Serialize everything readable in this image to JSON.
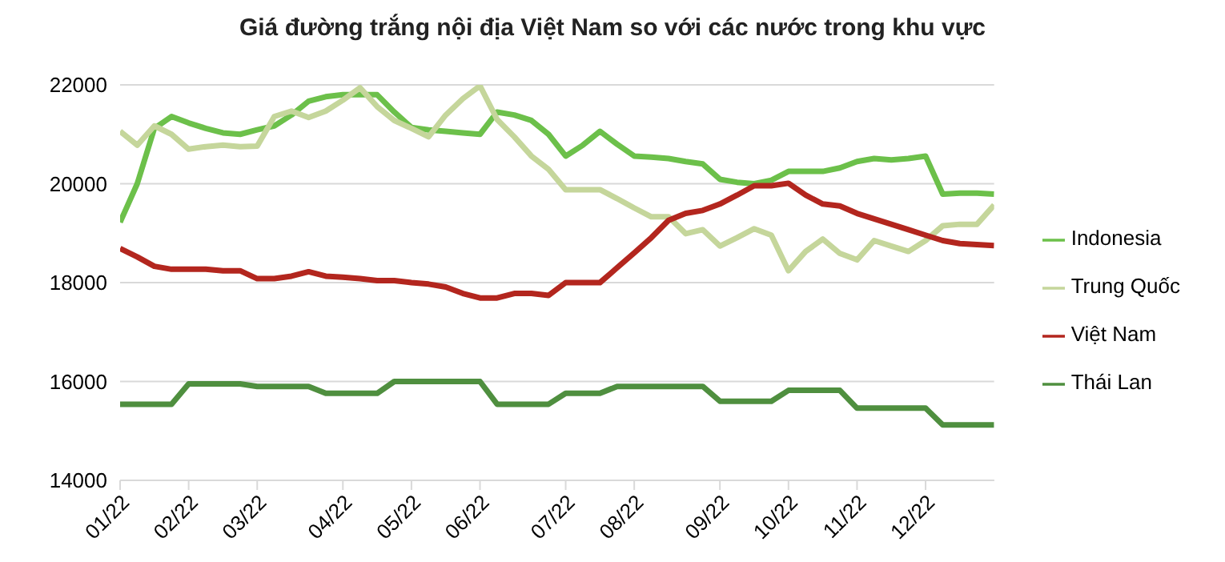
{
  "chart_data": {
    "type": "line",
    "title": "Giá đường trắng nội địa Việt Nam so với các nước trong khu vực",
    "categories": [
      "01/22",
      null,
      null,
      null,
      "02/22",
      null,
      null,
      null,
      "03/22",
      null,
      null,
      null,
      null,
      "04/22",
      null,
      null,
      null,
      "05/22",
      null,
      null,
      null,
      "06/22",
      null,
      null,
      null,
      null,
      "07/22",
      null,
      null,
      null,
      "08/22",
      null,
      null,
      null,
      null,
      "09/22",
      null,
      null,
      null,
      "10/22",
      null,
      null,
      null,
      "11/22",
      null,
      null,
      null,
      "12/22",
      null,
      null,
      null,
      null
    ],
    "series": [
      {
        "name": "Indonesia",
        "color": "#6cc04a",
        "values": [
          19220,
          20000,
          21120,
          21360,
          21230,
          21120,
          21030,
          21000,
          21090,
          21170,
          21390,
          21670,
          21760,
          21800,
          21800,
          21800,
          21450,
          21140,
          21090,
          21060,
          21030,
          21000,
          21450,
          21390,
          21280,
          21000,
          20560,
          20780,
          21060,
          20800,
          20560,
          20540,
          20510,
          20450,
          20400,
          20090,
          20030,
          20000,
          20070,
          20250,
          20250,
          20250,
          20320,
          20450,
          20510,
          20480,
          20510,
          20560,
          19790,
          19810,
          19810,
          19790
        ]
      },
      {
        "name": "Trung Quốc",
        "color": "#c5d69b",
        "values": [
          21060,
          20780,
          21170,
          21000,
          20700,
          20750,
          20780,
          20750,
          20760,
          21360,
          21470,
          21340,
          21470,
          21690,
          21940,
          21560,
          21280,
          21120,
          20950,
          21390,
          21720,
          21980,
          21300,
          20950,
          20560,
          20290,
          19880,
          19880,
          19880,
          19700,
          19510,
          19330,
          19330,
          18990,
          19070,
          18740,
          18910,
          19090,
          18960,
          18240,
          18630,
          18880,
          18590,
          18460,
          18850,
          18740,
          18630,
          18850,
          19150,
          19180,
          19180,
          19570
        ]
      },
      {
        "name": "Việt Nam",
        "color": "#b3261e",
        "values": [
          18690,
          18520,
          18330,
          18270,
          18270,
          18270,
          18240,
          18240,
          18080,
          18080,
          18130,
          18220,
          18130,
          18110,
          18080,
          18040,
          18040,
          18000,
          17970,
          17910,
          17780,
          17690,
          17690,
          17780,
          17780,
          17740,
          18000,
          18000,
          18000,
          18300,
          18600,
          18910,
          19260,
          19400,
          19460,
          19590,
          19770,
          19960,
          19960,
          20010,
          19770,
          19590,
          19550,
          19400,
          19290,
          19180,
          19070,
          18960,
          18850,
          18790,
          18770,
          18750
        ]
      },
      {
        "name": "Thái Lan",
        "color": "#4f8f3f",
        "values": [
          15540,
          15540,
          15540,
          15540,
          15950,
          15950,
          15950,
          15950,
          15900,
          15900,
          15900,
          15900,
          15760,
          15760,
          15760,
          15760,
          16000,
          16000,
          16000,
          16000,
          16000,
          16000,
          15540,
          15540,
          15540,
          15540,
          15760,
          15760,
          15760,
          15900,
          15900,
          15900,
          15900,
          15900,
          15900,
          15600,
          15600,
          15600,
          15600,
          15820,
          15820,
          15820,
          15820,
          15460,
          15460,
          15460,
          15460,
          15460,
          15120,
          15120,
          15120,
          15120
        ]
      }
    ],
    "ylim": [
      14000,
      22000
    ],
    "yticks": [
      14000,
      16000,
      18000,
      20000,
      22000
    ],
    "grid": "y",
    "legend": "right",
    "marker": "none",
    "line_style": "solid"
  }
}
